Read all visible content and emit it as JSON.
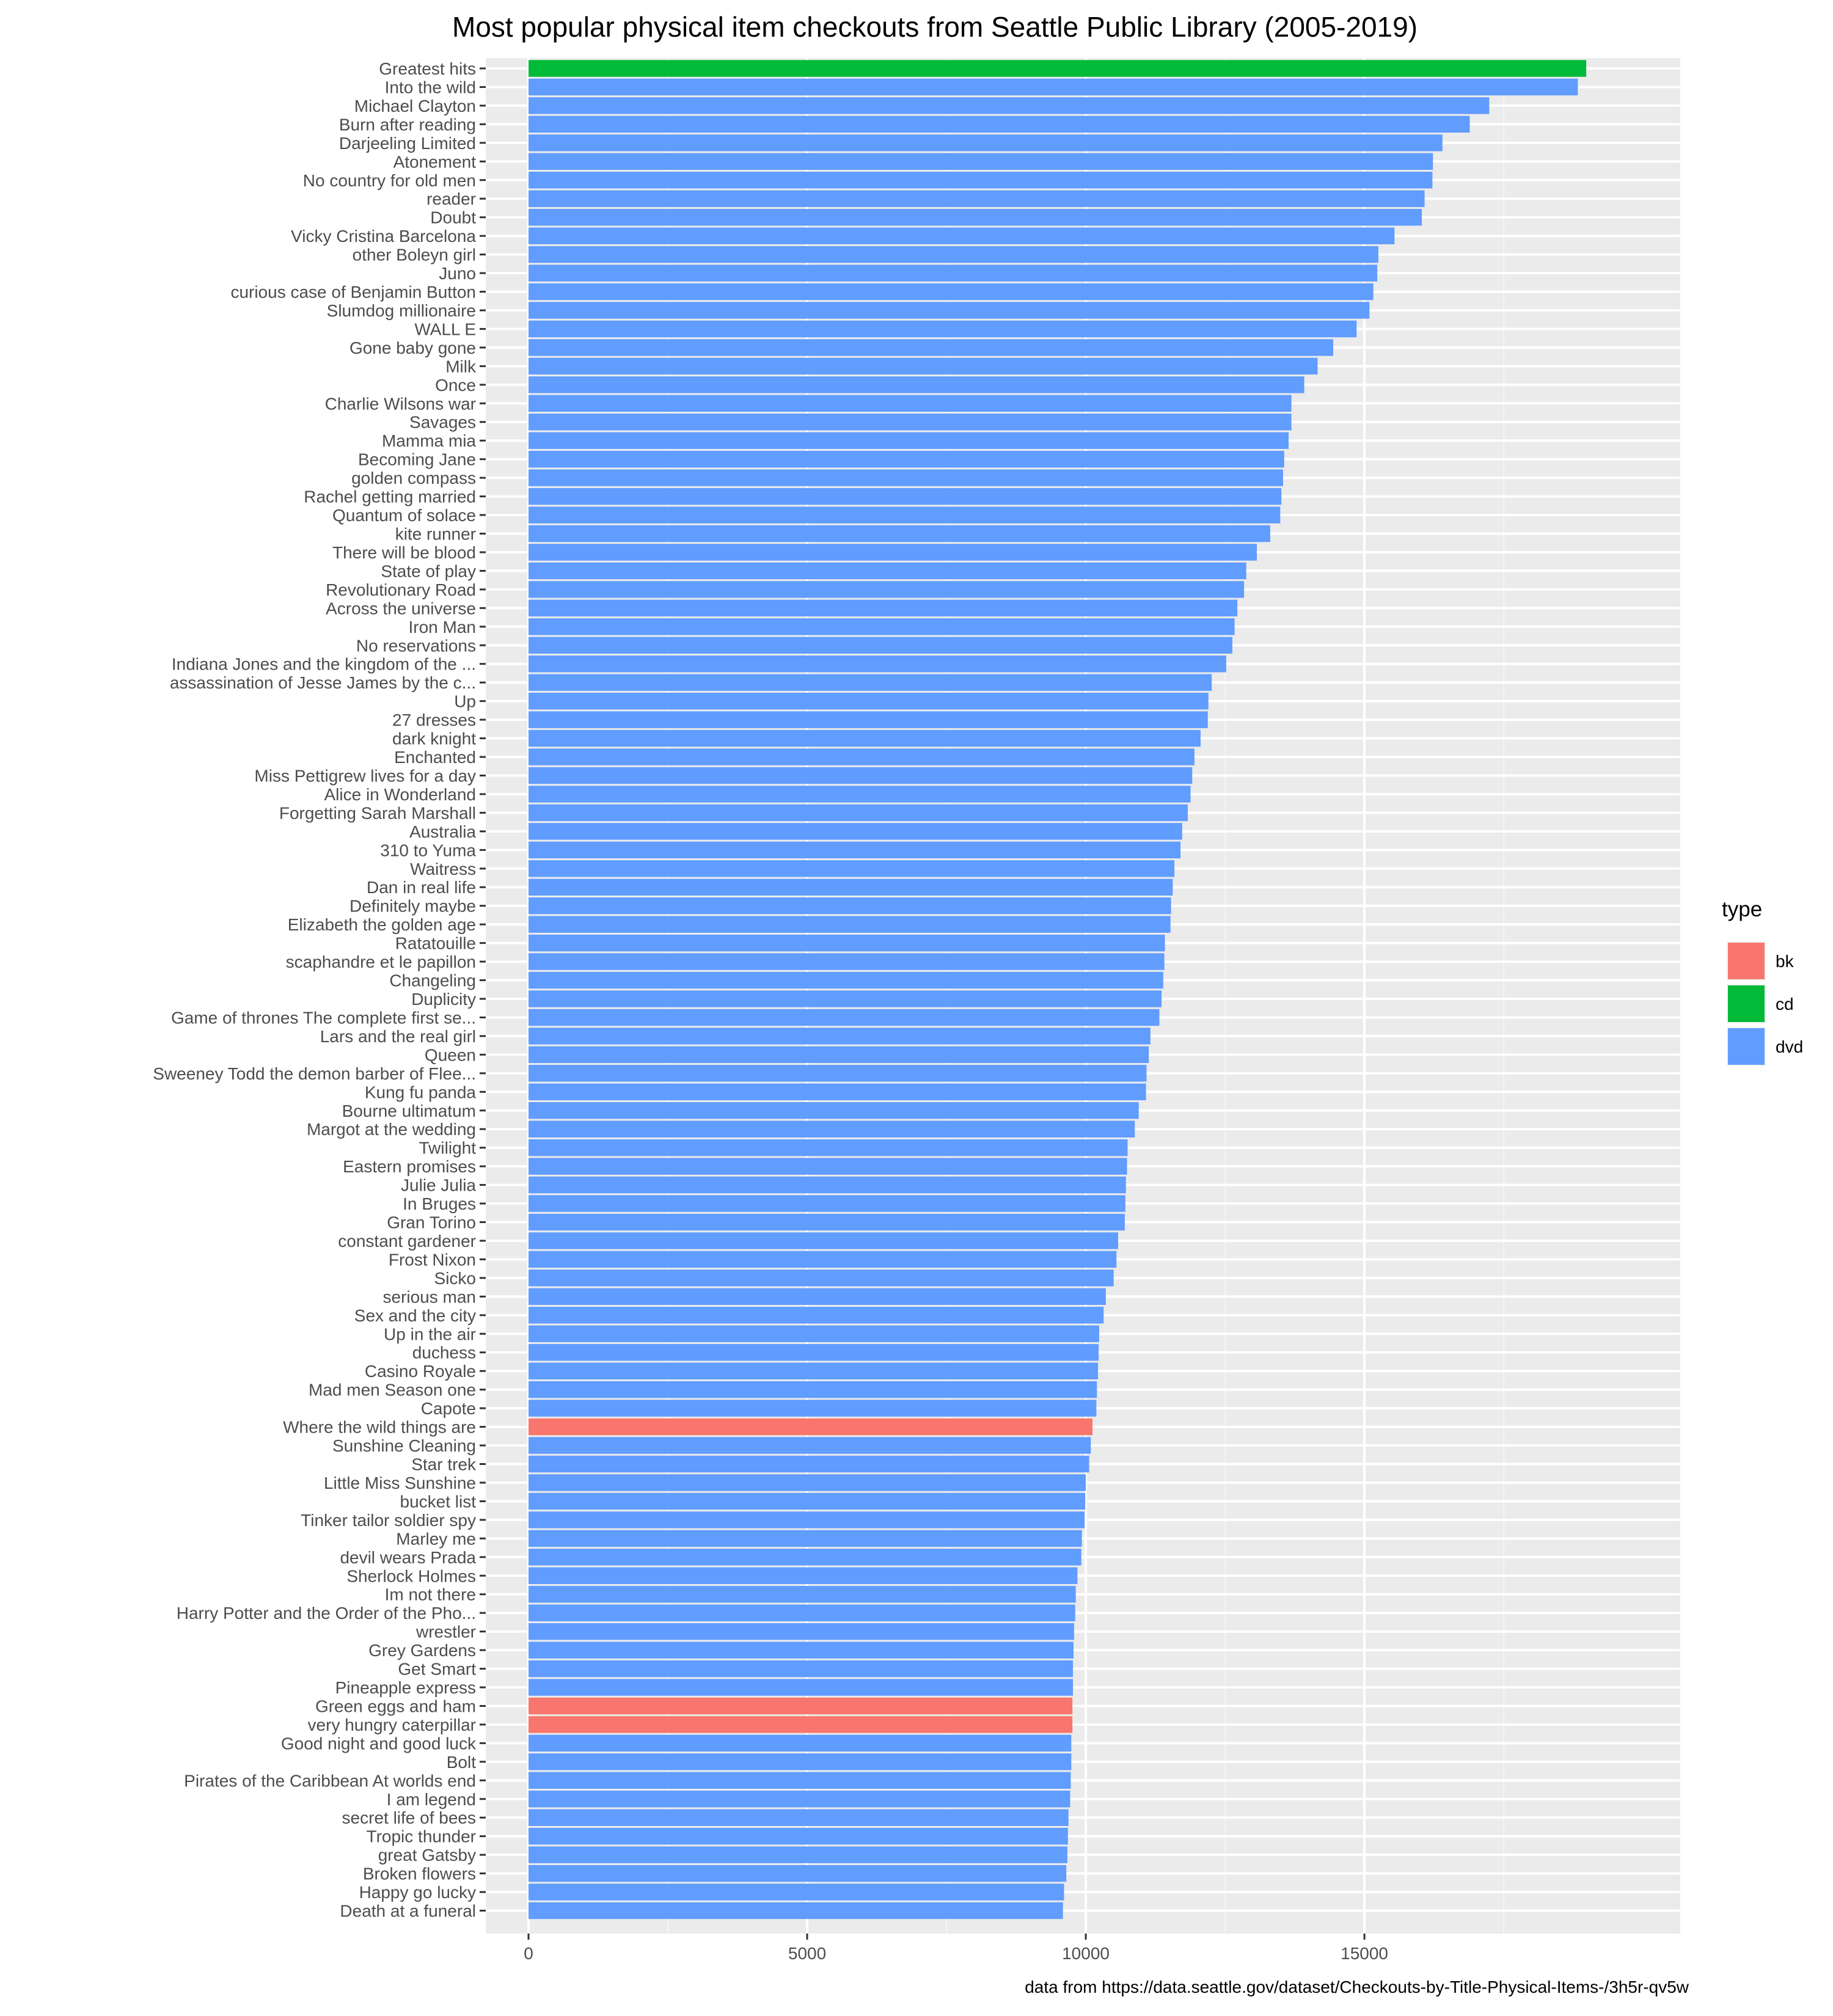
{
  "chart_data": {
    "type": "bar",
    "orientation": "horizontal",
    "title": "Most popular physical item checkouts from Seattle Public Library (2005-2019)",
    "xlabel": "",
    "ylabel": "",
    "caption": "data from https://data.seattle.gov/dataset/Checkouts-by-Title-Physical-Items-/3h5r-qv5w",
    "xlim": [
      0,
      19900
    ],
    "x_ticks": [
      0,
      5000,
      10000,
      15000
    ],
    "grid": true,
    "legend": {
      "title": "type",
      "position": "right",
      "entries": [
        {
          "key": "bk",
          "label": "bk",
          "color": "#F8766D"
        },
        {
          "key": "cd",
          "label": "cd",
          "color": "#00BA38"
        },
        {
          "key": "dvd",
          "label": "dvd",
          "color": "#619CFF"
        }
      ]
    },
    "items": [
      {
        "title": "Greatest hits",
        "value": 18980,
        "type": "cd"
      },
      {
        "title": "Into the wild",
        "value": 18830,
        "type": "dvd"
      },
      {
        "title": "Michael Clayton",
        "value": 17240,
        "type": "dvd"
      },
      {
        "title": "Burn after reading",
        "value": 16890,
        "type": "dvd"
      },
      {
        "title": "Darjeeling Limited",
        "value": 16400,
        "type": "dvd"
      },
      {
        "title": "Atonement",
        "value": 16230,
        "type": "dvd"
      },
      {
        "title": "No country for old men",
        "value": 16220,
        "type": "dvd"
      },
      {
        "title": "reader",
        "value": 16080,
        "type": "dvd"
      },
      {
        "title": "Doubt",
        "value": 16030,
        "type": "dvd"
      },
      {
        "title": "Vicky Cristina Barcelona",
        "value": 15540,
        "type": "dvd"
      },
      {
        "title": "other Boleyn girl",
        "value": 15250,
        "type": "dvd"
      },
      {
        "title": "Juno",
        "value": 15230,
        "type": "dvd"
      },
      {
        "title": "curious case of Benjamin Button",
        "value": 15160,
        "type": "dvd"
      },
      {
        "title": "Slumdog millionaire",
        "value": 15090,
        "type": "dvd"
      },
      {
        "title": "WALL E",
        "value": 14860,
        "type": "dvd"
      },
      {
        "title": "Gone baby gone",
        "value": 14440,
        "type": "dvd"
      },
      {
        "title": "Milk",
        "value": 14160,
        "type": "dvd"
      },
      {
        "title": "Once",
        "value": 13920,
        "type": "dvd"
      },
      {
        "title": "Charlie Wilsons war",
        "value": 13690,
        "type": "dvd"
      },
      {
        "title": "Savages",
        "value": 13690,
        "type": "dvd"
      },
      {
        "title": "Mamma mia",
        "value": 13640,
        "type": "dvd"
      },
      {
        "title": "Becoming Jane",
        "value": 13560,
        "type": "dvd"
      },
      {
        "title": "golden compass",
        "value": 13540,
        "type": "dvd"
      },
      {
        "title": "Rachel getting married",
        "value": 13510,
        "type": "dvd"
      },
      {
        "title": "Quantum of solace",
        "value": 13490,
        "type": "dvd"
      },
      {
        "title": "kite runner",
        "value": 13310,
        "type": "dvd"
      },
      {
        "title": "There will be blood",
        "value": 13070,
        "type": "dvd"
      },
      {
        "title": "State of play",
        "value": 12880,
        "type": "dvd"
      },
      {
        "title": "Revolutionary Road",
        "value": 12840,
        "type": "dvd"
      },
      {
        "title": "Across the universe",
        "value": 12720,
        "type": "dvd"
      },
      {
        "title": "Iron Man",
        "value": 12670,
        "type": "dvd"
      },
      {
        "title": "No reservations",
        "value": 12630,
        "type": "dvd"
      },
      {
        "title": "Indiana Jones and the kingdom of the ...",
        "value": 12520,
        "type": "dvd"
      },
      {
        "title": "assassination of Jesse James by the c...",
        "value": 12260,
        "type": "dvd"
      },
      {
        "title": "Up",
        "value": 12200,
        "type": "dvd"
      },
      {
        "title": "27 dresses",
        "value": 12190,
        "type": "dvd"
      },
      {
        "title": "dark knight",
        "value": 12060,
        "type": "dvd"
      },
      {
        "title": "Enchanted",
        "value": 11950,
        "type": "dvd"
      },
      {
        "title": "Miss Pettigrew lives for a day",
        "value": 11910,
        "type": "dvd"
      },
      {
        "title": "Alice in Wonderland",
        "value": 11880,
        "type": "dvd"
      },
      {
        "title": "Forgetting Sarah Marshall",
        "value": 11830,
        "type": "dvd"
      },
      {
        "title": "Australia",
        "value": 11730,
        "type": "dvd"
      },
      {
        "title": "310 to Yuma",
        "value": 11700,
        "type": "dvd"
      },
      {
        "title": "Waitress",
        "value": 11590,
        "type": "dvd"
      },
      {
        "title": "Dan in real life",
        "value": 11560,
        "type": "dvd"
      },
      {
        "title": "Definitely maybe",
        "value": 11530,
        "type": "dvd"
      },
      {
        "title": "Elizabeth the golden age",
        "value": 11520,
        "type": "dvd"
      },
      {
        "title": "Ratatouille",
        "value": 11420,
        "type": "dvd"
      },
      {
        "title": "scaphandre et le papillon",
        "value": 11410,
        "type": "dvd"
      },
      {
        "title": "Changeling",
        "value": 11390,
        "type": "dvd"
      },
      {
        "title": "Duplicity",
        "value": 11360,
        "type": "dvd"
      },
      {
        "title": "Game of thrones The complete first se...",
        "value": 11320,
        "type": "dvd"
      },
      {
        "title": "Lars and the real girl",
        "value": 11160,
        "type": "dvd"
      },
      {
        "title": "Queen",
        "value": 11130,
        "type": "dvd"
      },
      {
        "title": "Sweeney Todd the demon barber of Flee...",
        "value": 11090,
        "type": "dvd"
      },
      {
        "title": "Kung fu panda",
        "value": 11080,
        "type": "dvd"
      },
      {
        "title": "Bourne ultimatum",
        "value": 10950,
        "type": "dvd"
      },
      {
        "title": "Margot at the wedding",
        "value": 10880,
        "type": "dvd"
      },
      {
        "title": "Twilight",
        "value": 10750,
        "type": "dvd"
      },
      {
        "title": "Eastern promises",
        "value": 10740,
        "type": "dvd"
      },
      {
        "title": "Julie Julia",
        "value": 10720,
        "type": "dvd"
      },
      {
        "title": "In Bruges",
        "value": 10710,
        "type": "dvd"
      },
      {
        "title": "Gran Torino",
        "value": 10700,
        "type": "dvd"
      },
      {
        "title": "constant gardener",
        "value": 10580,
        "type": "dvd"
      },
      {
        "title": "Frost Nixon",
        "value": 10550,
        "type": "dvd"
      },
      {
        "title": "Sicko",
        "value": 10500,
        "type": "dvd"
      },
      {
        "title": "serious man",
        "value": 10360,
        "type": "dvd"
      },
      {
        "title": "Sex and the city",
        "value": 10320,
        "type": "dvd"
      },
      {
        "title": "Up in the air",
        "value": 10240,
        "type": "dvd"
      },
      {
        "title": "duchess",
        "value": 10230,
        "type": "dvd"
      },
      {
        "title": "Casino Royale",
        "value": 10220,
        "type": "dvd"
      },
      {
        "title": "Mad men Season one",
        "value": 10200,
        "type": "dvd"
      },
      {
        "title": "Capote",
        "value": 10190,
        "type": "dvd"
      },
      {
        "title": "Where the wild things are",
        "value": 10120,
        "type": "bk"
      },
      {
        "title": "Sunshine Cleaning",
        "value": 10090,
        "type": "dvd"
      },
      {
        "title": "Star trek",
        "value": 10060,
        "type": "dvd"
      },
      {
        "title": "Little Miss Sunshine",
        "value": 10000,
        "type": "dvd"
      },
      {
        "title": "bucket list",
        "value": 9990,
        "type": "dvd"
      },
      {
        "title": "Tinker tailor soldier spy",
        "value": 9980,
        "type": "dvd"
      },
      {
        "title": "Marley me",
        "value": 9930,
        "type": "dvd"
      },
      {
        "title": "devil wears Prada",
        "value": 9920,
        "type": "dvd"
      },
      {
        "title": "Sherlock Holmes",
        "value": 9850,
        "type": "dvd"
      },
      {
        "title": "Im not there",
        "value": 9820,
        "type": "dvd"
      },
      {
        "title": "Harry Potter and the Order of the Pho...",
        "value": 9810,
        "type": "dvd"
      },
      {
        "title": "wrestler",
        "value": 9790,
        "type": "dvd"
      },
      {
        "title": "Grey Gardens",
        "value": 9780,
        "type": "dvd"
      },
      {
        "title": "Get Smart",
        "value": 9770,
        "type": "dvd"
      },
      {
        "title": "Pineapple express",
        "value": 9770,
        "type": "dvd"
      },
      {
        "title": "Green eggs and ham",
        "value": 9760,
        "type": "bk"
      },
      {
        "title": "very hungry caterpillar",
        "value": 9760,
        "type": "bk"
      },
      {
        "title": "Good night and good luck",
        "value": 9740,
        "type": "dvd"
      },
      {
        "title": "Bolt",
        "value": 9740,
        "type": "dvd"
      },
      {
        "title": "Pirates of the Caribbean At worlds end",
        "value": 9730,
        "type": "dvd"
      },
      {
        "title": "I am legend",
        "value": 9720,
        "type": "dvd"
      },
      {
        "title": "secret life of bees",
        "value": 9690,
        "type": "dvd"
      },
      {
        "title": "Tropic thunder",
        "value": 9680,
        "type": "dvd"
      },
      {
        "title": "great Gatsby",
        "value": 9670,
        "type": "dvd"
      },
      {
        "title": "Broken flowers",
        "value": 9650,
        "type": "dvd"
      },
      {
        "title": "Happy go lucky",
        "value": 9610,
        "type": "dvd"
      },
      {
        "title": "Death at a funeral",
        "value": 9590,
        "type": "dvd"
      }
    ]
  }
}
